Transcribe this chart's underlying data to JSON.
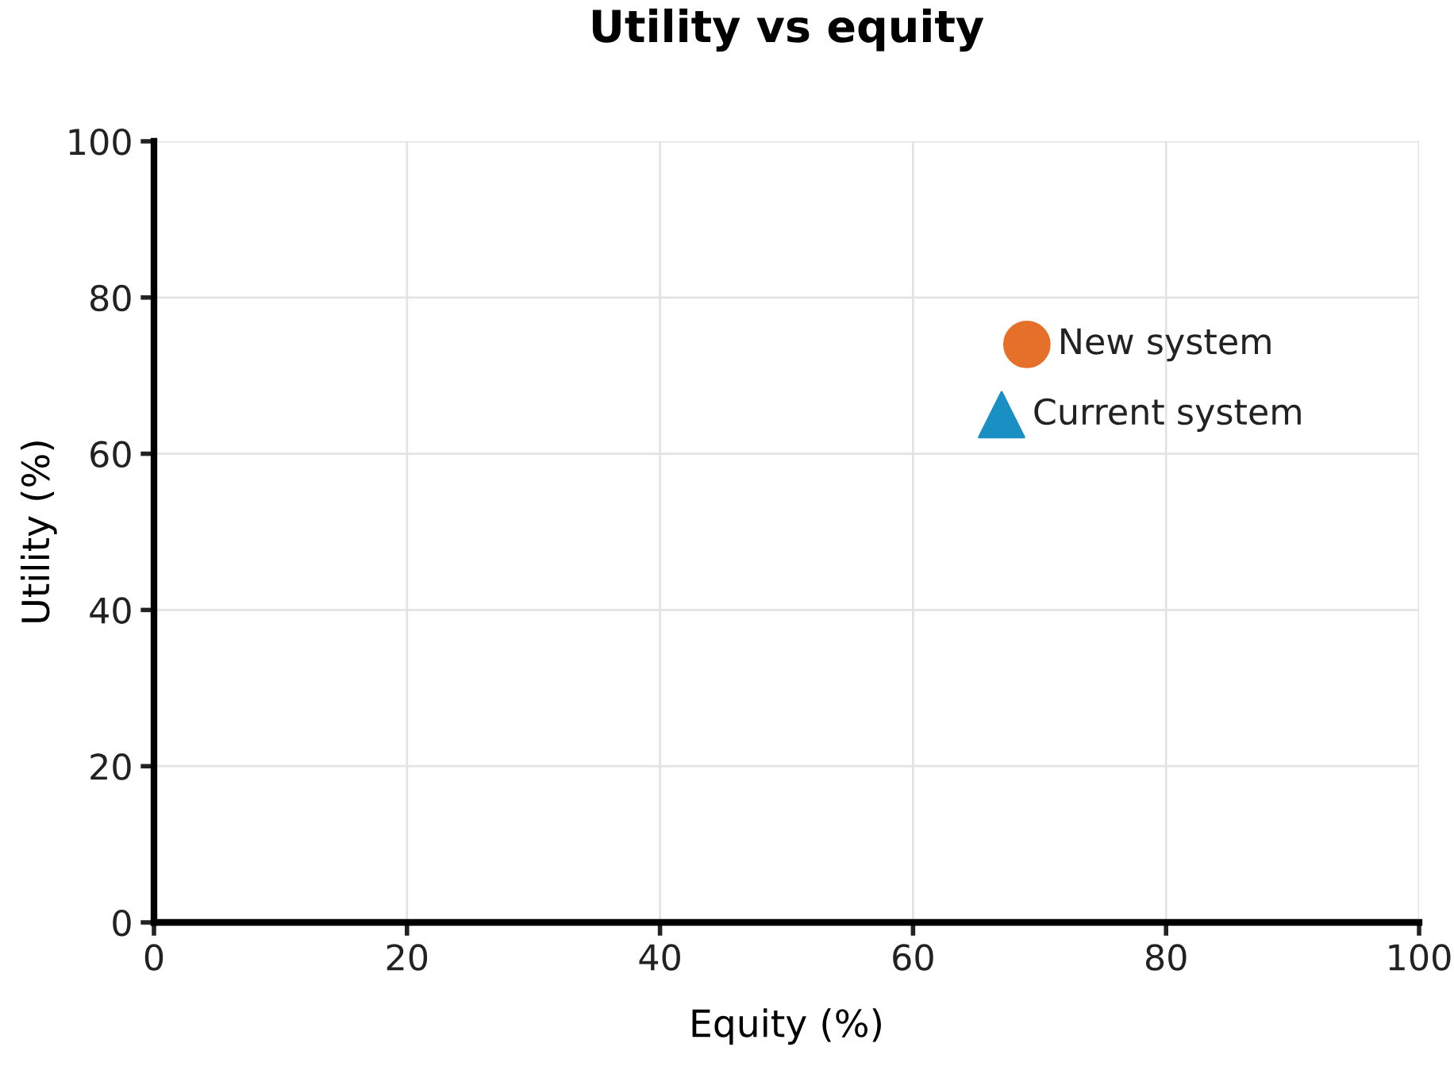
{
  "chart_data": {
    "type": "scatter",
    "title": "Utility vs equity",
    "xlabel": "Equity (%)",
    "ylabel": "Utility (%)",
    "series": [
      {
        "name": "New system",
        "color": "#e5702a",
        "marker": "circle",
        "x": [
          69
        ],
        "values": [
          74
        ]
      },
      {
        "name": "Current system",
        "color": "#1a8fc4",
        "marker": "triangle",
        "x": [
          67
        ],
        "values": [
          65
        ]
      }
    ],
    "xlim": [
      0,
      100
    ],
    "ylim": [
      0,
      100
    ],
    "xticks": [
      0,
      20,
      40,
      60,
      80,
      100
    ],
    "yticks": [
      0,
      20,
      40,
      60,
      80,
      100
    ],
    "grid": true,
    "legend": false
  }
}
